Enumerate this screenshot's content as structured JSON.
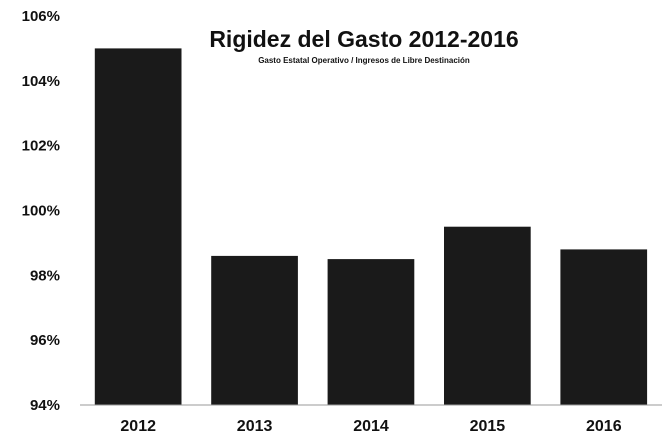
{
  "chart_data": {
    "type": "bar",
    "title": "Rigidez del Gasto 2012-2016",
    "subtitle": "Gasto Estatal Operativo / Ingresos de Libre Destinación",
    "xlabel": "",
    "ylabel": "",
    "categories": [
      "2012",
      "2013",
      "2014",
      "2015",
      "2016"
    ],
    "values": [
      105.0,
      98.6,
      98.5,
      99.5,
      98.8
    ],
    "ylim": [
      94,
      106
    ],
    "yticks": [
      94,
      96,
      98,
      100,
      102,
      104,
      106
    ],
    "ytick_labels": [
      "94%",
      "96%",
      "98%",
      "100%",
      "102%",
      "104%",
      "106%"
    ],
    "grid": false,
    "legend": "none",
    "bar_color": "#1a1a1a"
  }
}
